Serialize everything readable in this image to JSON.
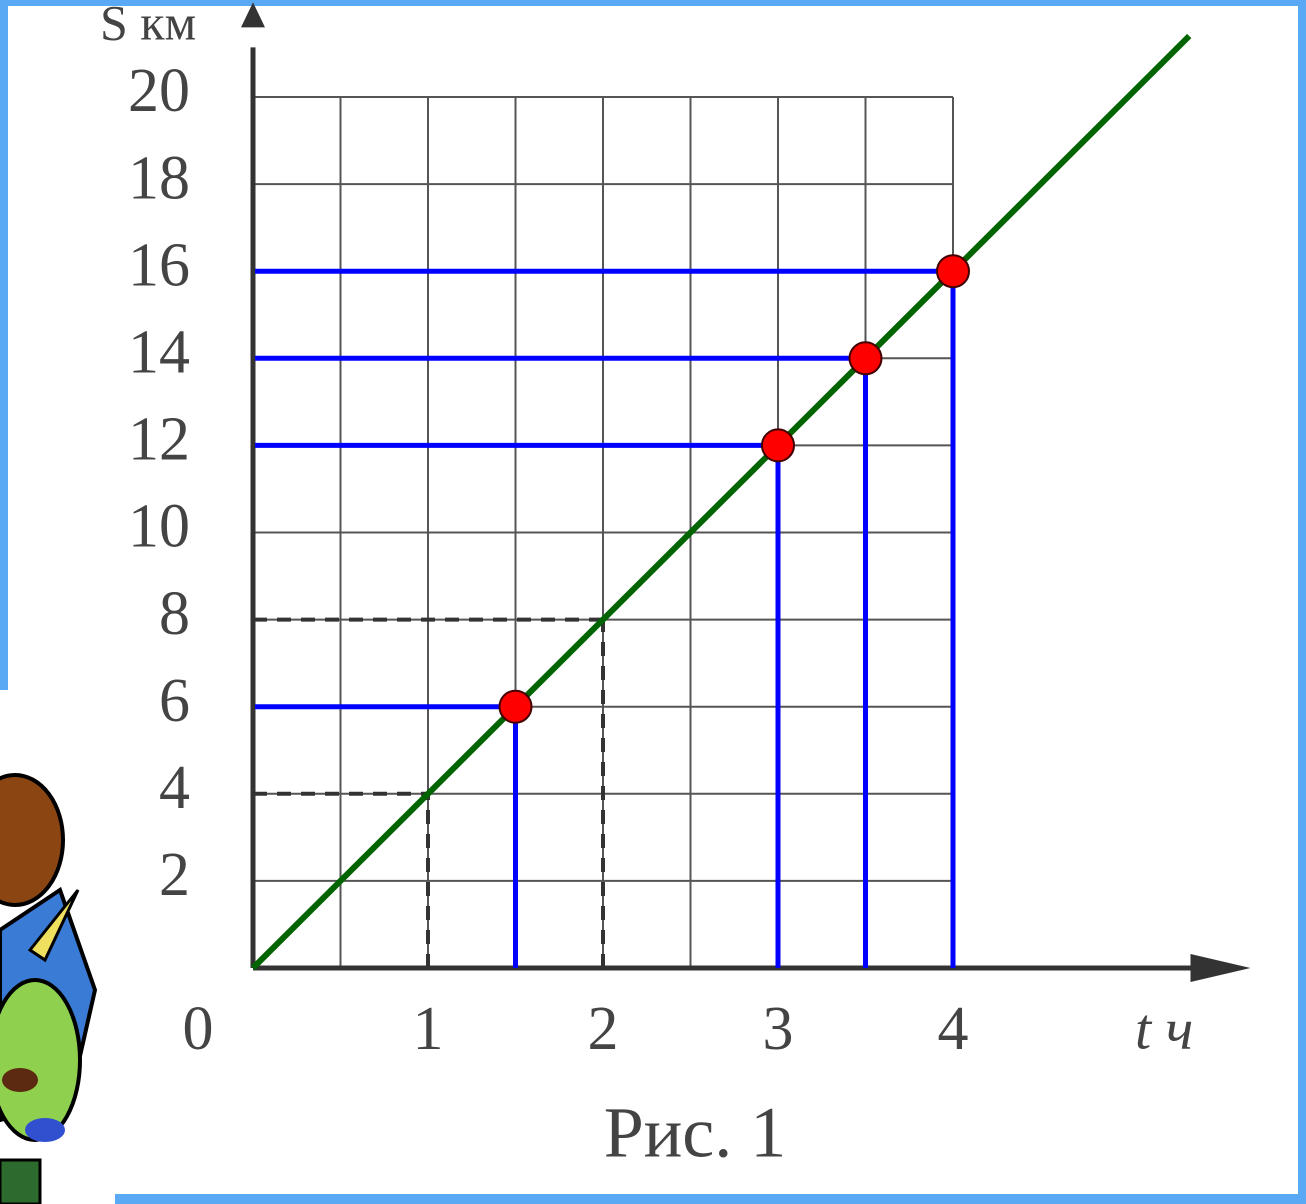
{
  "chart_data": {
    "type": "line",
    "y_label": "S км",
    "x_label": "t ч",
    "caption": "Рис. 1",
    "xlim": [
      0,
      5.7
    ],
    "ylim": [
      0,
      21.6
    ],
    "xticks": [
      0,
      1,
      2,
      3,
      4
    ],
    "x_minor_ticks": [
      0.5,
      1.5,
      2.5,
      3.5
    ],
    "yticks": [
      2,
      4,
      6,
      8,
      10,
      12,
      14,
      16,
      18,
      20
    ],
    "grid": true,
    "series": [
      {
        "color": "#006400",
        "x": [
          0,
          5.35
        ],
        "values": [
          0,
          21.4
        ]
      }
    ],
    "guides": {
      "color": "#333333",
      "x": [
        1,
        2,
        3,
        4
      ],
      "values": [
        4,
        8,
        12,
        16
      ]
    },
    "points": {
      "color": "#ff0000",
      "projection_color": "#0000ff",
      "x": [
        1.5,
        3,
        3.5,
        4
      ],
      "values": [
        6,
        12,
        14,
        16
      ]
    }
  }
}
